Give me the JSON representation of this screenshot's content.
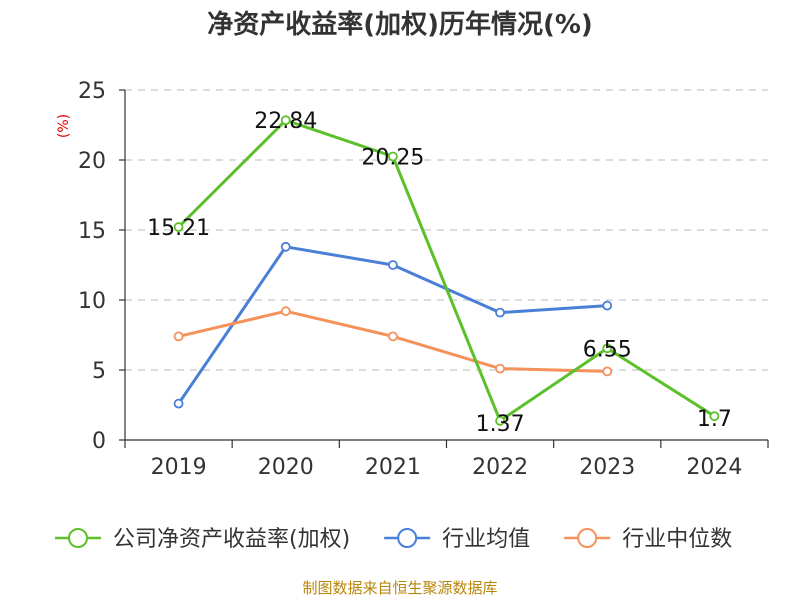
{
  "chart_data": {
    "type": "line",
    "title": "净资产收益率(加权)历年情况(%)",
    "ylabel": "(%)",
    "xlabel": "",
    "categories": [
      "2019",
      "2020",
      "2021",
      "2022",
      "2023",
      "2024"
    ],
    "ylim": [
      0,
      25
    ],
    "yticks": [
      0,
      5,
      10,
      15,
      20,
      25
    ],
    "grid": true,
    "legend_position": "bottom",
    "series": [
      {
        "name": "公司净资产收益率(加权)",
        "color": "#5cc02b",
        "values": [
          15.21,
          22.84,
          20.25,
          1.37,
          6.55,
          1.7
        ],
        "labels": [
          "15.21",
          "22.84",
          "20.25",
          "1.37",
          "6.55",
          "1.7"
        ]
      },
      {
        "name": "行业均值",
        "color": "#4a7fd8",
        "values": [
          2.6,
          13.8,
          12.5,
          9.1,
          9.6,
          null
        ]
      },
      {
        "name": "行业中位数",
        "color": "#f5915b",
        "values": [
          7.4,
          9.2,
          7.4,
          5.1,
          4.9,
          null
        ]
      }
    ]
  },
  "footer": {
    "source": "制图数据来自恒生聚源数据库"
  }
}
